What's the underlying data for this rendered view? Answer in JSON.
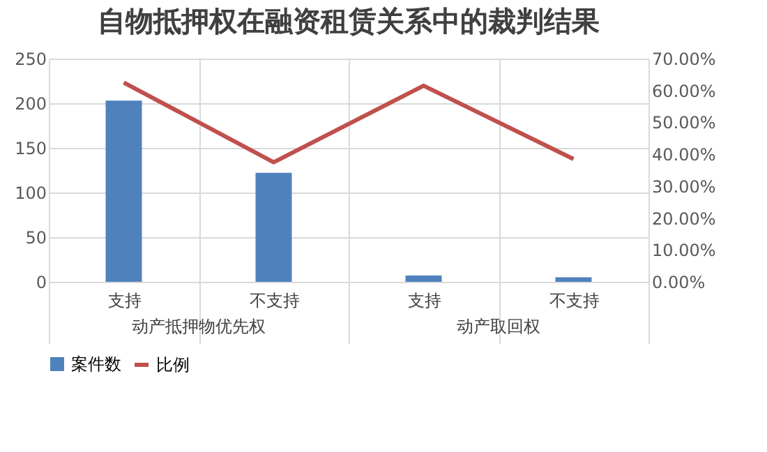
{
  "chart_data": {
    "type": "bar",
    "title": "自物抵押权在融资租赁关系中的裁判结果",
    "categories": [
      "支持",
      "不支持",
      "支持",
      "不支持"
    ],
    "series": [
      {
        "name": "案件数",
        "color": "#4f81bd",
        "values": [
          203,
          122,
          7,
          5
        ]
      },
      {
        "name": "比例",
        "color": "#c0504d",
        "type": "line",
        "axis": "y2",
        "values": [
          62.5,
          37.5,
          61.5,
          38.5
        ]
      }
    ],
    "ylim": [
      0,
      250
    ],
    "yticks": [
      0,
      50,
      100,
      150,
      200,
      250
    ],
    "y2lim": [
      0,
      70
    ],
    "y2ticks": [
      {
        "value": 0,
        "label": "0.00%"
      },
      {
        "value": 10,
        "label": "10.00%"
      },
      {
        "value": 20,
        "label": "20.00%"
      },
      {
        "value": 30,
        "label": "30.00%"
      },
      {
        "value": 40,
        "label": "40.00%"
      },
      {
        "value": 50,
        "label": "50.00%"
      },
      {
        "value": 60,
        "label": "60.00%"
      },
      {
        "value": 70,
        "label": "70.00%"
      }
    ],
    "annotations": [
      "动产抵押物优先权",
      "动产取回权"
    ],
    "grid": true,
    "legend": "bottom",
    "marker": "none",
    "line_style": "solid"
  }
}
